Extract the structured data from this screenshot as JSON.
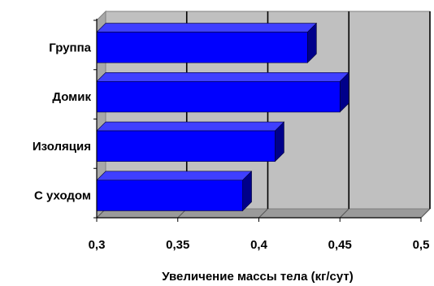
{
  "chart_data": {
    "type": "bar",
    "orientation": "horizontal",
    "style": "3d",
    "title": "",
    "xlabel": "Увеличение массы тела (кг/сут)",
    "ylabel": "",
    "categories": [
      "Группа",
      "Домик",
      "Изоляция",
      "С уходом"
    ],
    "values": [
      0.43,
      0.45,
      0.41,
      0.39
    ],
    "xlim": [
      0.3,
      0.5
    ],
    "xticks": [
      "0,3",
      "0,35",
      "0,4",
      "0,45",
      "0,5"
    ],
    "grid": true,
    "legend": "none",
    "colors": {
      "bar_front": "#0000FF",
      "bar_top": "#3F3FFF",
      "bar_side": "#00008A",
      "plot_background": "#C0C0C0",
      "gridline": "#000000"
    }
  }
}
